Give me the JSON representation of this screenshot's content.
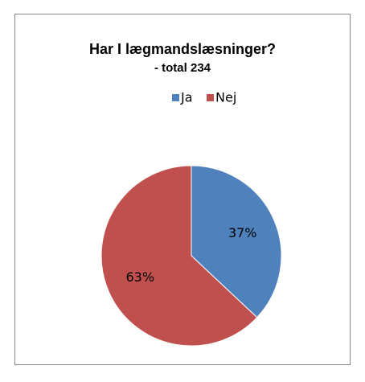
{
  "chart_data": {
    "type": "pie",
    "title": "Har I lægmandslæsninger?",
    "subtitle": "- total 234",
    "categories": [
      "Ja",
      "Nej"
    ],
    "values": [
      37,
      63
    ],
    "value_labels": [
      "37%",
      "63%"
    ],
    "colors": [
      "#4f81bd",
      "#c0504d"
    ],
    "legend": "top"
  }
}
